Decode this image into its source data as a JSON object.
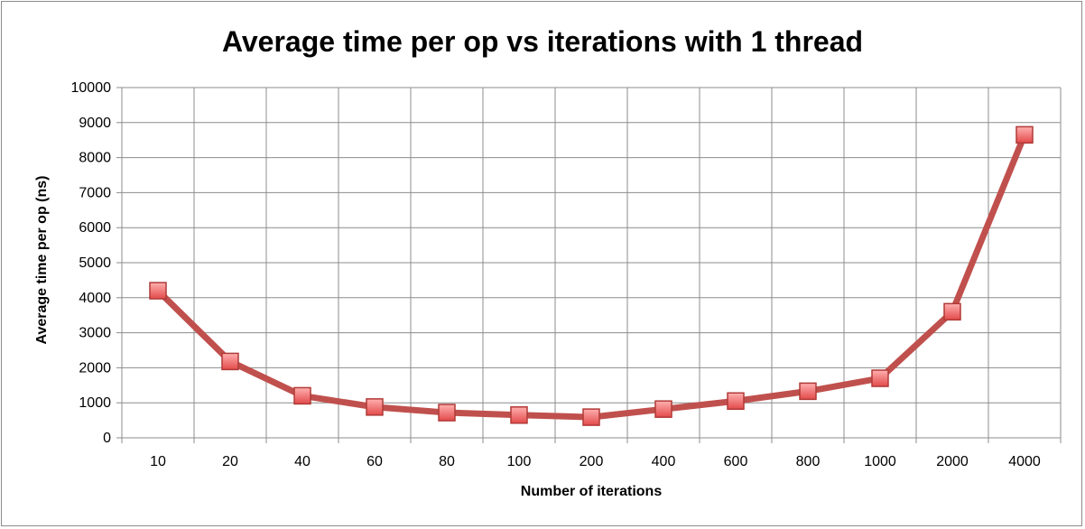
{
  "chart_data": {
    "type": "line",
    "title": "Average time per op vs iterations with 1 thread",
    "xlabel": "Number of iterations",
    "ylabel": "Average time per op (ns)",
    "categories": [
      "10",
      "20",
      "40",
      "60",
      "80",
      "100",
      "200",
      "400",
      "600",
      "800",
      "1000",
      "2000",
      "4000"
    ],
    "series": [
      {
        "values": [
          4200,
          2180,
          1200,
          880,
          720,
          650,
          590,
          820,
          1050,
          1330,
          1700,
          3600,
          8650
        ],
        "color": "#c0504d",
        "marker": "square",
        "marker_color": "#f07c7c"
      }
    ],
    "ylim": [
      0,
      10000
    ],
    "yticks": [
      0,
      1000,
      2000,
      3000,
      4000,
      5000,
      6000,
      7000,
      8000,
      9000,
      10000
    ],
    "grid": true,
    "legend": "none"
  }
}
